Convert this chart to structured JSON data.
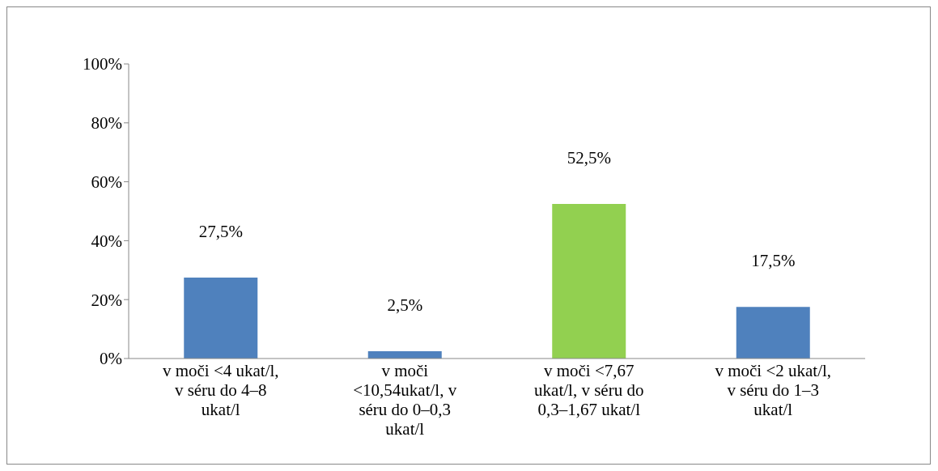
{
  "chart_data": {
    "type": "bar",
    "categories": [
      "v moči <4 ukat/l, v séru do 4–8 ukat/l",
      "v moči <10,54ukat/l, v séru do 0–0,3 ukat/l",
      "v moči <7,67 ukat/l, v séru do 0,3–1,67 ukat/l",
      "v moči <2 ukat/l, v séru do 1–3 ukat/l"
    ],
    "values": [
      27.5,
      2.5,
      52.5,
      17.5
    ],
    "colors": [
      "#4f81bd",
      "#4f81bd",
      "#92d050",
      "#4f81bd"
    ],
    "value_labels": [
      "27,5%",
      "2,5%",
      "52,5%",
      "17,5%"
    ],
    "ylim": [
      0,
      100
    ],
    "yticks": [
      {
        "value": 0,
        "label": "0%"
      },
      {
        "value": 20,
        "label": "20%"
      },
      {
        "value": 40,
        "label": "40%"
      },
      {
        "value": 60,
        "label": "60%"
      },
      {
        "value": 80,
        "label": "80%"
      },
      {
        "value": 100,
        "label": "100%"
      }
    ],
    "grid": false,
    "legend": false
  }
}
